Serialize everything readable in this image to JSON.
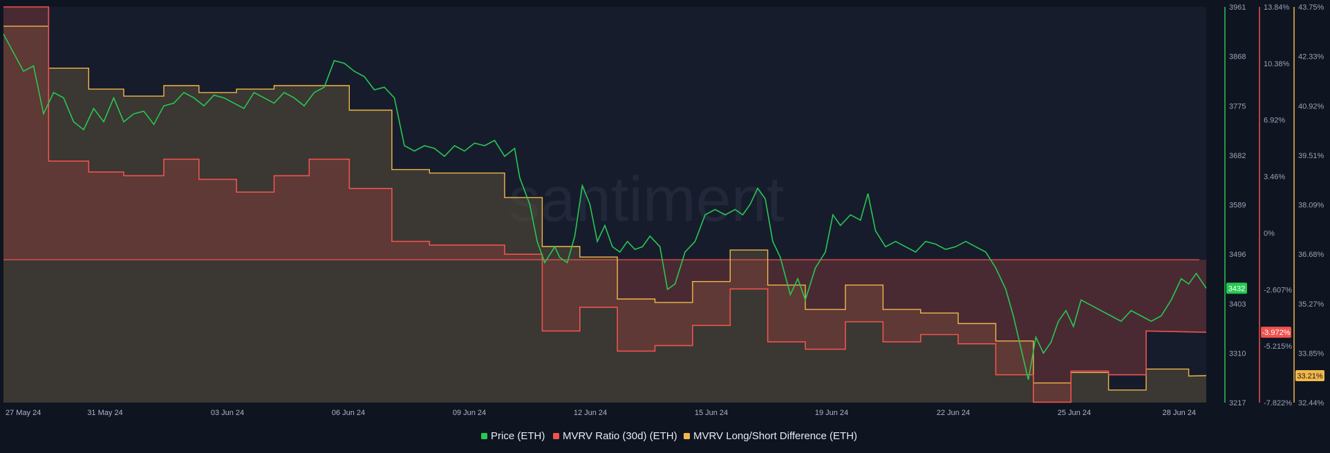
{
  "watermark": "santiment",
  "legend": [
    {
      "label": "Price (ETH)",
      "color": "#26c953"
    },
    {
      "label": "MVRV Ratio (30d) (ETH)",
      "color": "#ef5350"
    },
    {
      "label": "MVRV Long/Short Difference (ETH)",
      "color": "#f2b84b"
    }
  ],
  "colors": {
    "background": "#0f1421",
    "plot_background": "#171c2c",
    "price_line": "#26c953",
    "mvrv_line": "#ef5350",
    "ls_line": "#f2b84b"
  },
  "chart_data": {
    "type": "line",
    "x_range": [
      "2024-05-27",
      "2024-06-28"
    ],
    "x_ticks": [
      "27 May 24",
      "31 May 24",
      "03 Jun 24",
      "06 Jun 24",
      "09 Jun 24",
      "12 Jun 24",
      "15 Jun 24",
      "19 Jun 24",
      "22 Jun 24",
      "25 Jun 24",
      "28 Jun 24"
    ],
    "axes": {
      "price": {
        "range": [
          3217,
          3961
        ],
        "ticks": [
          "3961",
          "3868",
          "3775",
          "3682",
          "3589",
          "3496",
          "3403",
          "3310",
          "3217"
        ],
        "color": "#26c953"
      },
      "mvrv": {
        "range": [
          -7.822,
          13.84
        ],
        "ticks": [
          "13.84%",
          "10.38%",
          "6.92%",
          "3.46%",
          "0%",
          "-2.607%",
          "-5.215%",
          "-7.822%"
        ],
        "color": "#ef5350"
      },
      "ls": {
        "range": [
          32.44,
          43.75
        ],
        "ticks": [
          "43.75%",
          "42.33%",
          "40.92%",
          "39.51%",
          "38.09%",
          "36.68%",
          "35.27%",
          "33.85%",
          "32.44%"
        ],
        "color": "#f2b84b"
      }
    },
    "current_labels": {
      "price": "3432",
      "mvrv": "-3.972%",
      "ls": "33.21%"
    },
    "series": [
      {
        "name": "Price (ETH)",
        "axis": "price",
        "style": "line",
        "points": [
          [
            0.0,
            3910
          ],
          [
            0.4,
            3875
          ],
          [
            0.8,
            3840
          ],
          [
            1.2,
            3850
          ],
          [
            1.6,
            3760
          ],
          [
            2.0,
            3800
          ],
          [
            2.4,
            3790
          ],
          [
            2.8,
            3745
          ],
          [
            3.2,
            3730
          ],
          [
            3.6,
            3770
          ],
          [
            4.0,
            3745
          ],
          [
            4.4,
            3790
          ],
          [
            4.8,
            3745
          ],
          [
            5.2,
            3760
          ],
          [
            5.6,
            3765
          ],
          [
            6.0,
            3740
          ],
          [
            6.4,
            3775
          ],
          [
            6.8,
            3780
          ],
          [
            7.2,
            3800
          ],
          [
            7.6,
            3790
          ],
          [
            8.0,
            3775
          ],
          [
            8.4,
            3795
          ],
          [
            8.8,
            3790
          ],
          [
            9.2,
            3780
          ],
          [
            9.6,
            3770
          ],
          [
            10.0,
            3800
          ],
          [
            10.4,
            3790
          ],
          [
            10.8,
            3780
          ],
          [
            11.2,
            3800
          ],
          [
            11.6,
            3790
          ],
          [
            12.0,
            3775
          ],
          [
            12.4,
            3800
          ],
          [
            12.8,
            3810
          ],
          [
            13.2,
            3860
          ],
          [
            13.6,
            3855
          ],
          [
            14.0,
            3840
          ],
          [
            14.4,
            3830
          ],
          [
            14.8,
            3805
          ],
          [
            15.2,
            3810
          ],
          [
            15.6,
            3790
          ],
          [
            16.0,
            3700
          ],
          [
            16.4,
            3690
          ],
          [
            16.8,
            3700
          ],
          [
            17.2,
            3695
          ],
          [
            17.6,
            3680
          ],
          [
            18.0,
            3700
          ],
          [
            18.4,
            3690
          ],
          [
            18.8,
            3705
          ],
          [
            19.2,
            3700
          ],
          [
            19.6,
            3710
          ],
          [
            20.0,
            3680
          ],
          [
            20.4,
            3695
          ],
          [
            20.6,
            3640
          ],
          [
            21.0,
            3590
          ],
          [
            21.3,
            3520
          ],
          [
            21.6,
            3480
          ],
          [
            22.0,
            3510
          ],
          [
            22.2,
            3490
          ],
          [
            22.5,
            3480
          ],
          [
            22.8,
            3530
          ],
          [
            23.1,
            3625
          ],
          [
            23.4,
            3590
          ],
          [
            23.7,
            3520
          ],
          [
            24.0,
            3550
          ],
          [
            24.3,
            3510
          ],
          [
            24.6,
            3500
          ],
          [
            24.9,
            3520
          ],
          [
            25.2,
            3505
          ],
          [
            25.5,
            3510
          ],
          [
            25.8,
            3530
          ],
          [
            26.2,
            3510
          ],
          [
            26.5,
            3430
          ],
          [
            26.8,
            3440
          ],
          [
            27.2,
            3500
          ],
          [
            27.6,
            3520
          ],
          [
            28.0,
            3570
          ],
          [
            28.4,
            3580
          ],
          [
            28.8,
            3570
          ],
          [
            29.2,
            3580
          ],
          [
            29.5,
            3570
          ],
          [
            29.8,
            3590
          ],
          [
            30.1,
            3620
          ],
          [
            30.4,
            3600
          ],
          [
            30.7,
            3520
          ],
          [
            31.0,
            3490
          ],
          [
            31.4,
            3420
          ],
          [
            31.7,
            3450
          ],
          [
            32.0,
            3410
          ],
          [
            32.4,
            3470
          ],
          [
            32.8,
            3500
          ],
          [
            33.1,
            3570
          ],
          [
            33.4,
            3550
          ],
          [
            33.8,
            3570
          ],
          [
            34.2,
            3560
          ],
          [
            34.5,
            3610
          ],
          [
            34.8,
            3540
          ],
          [
            35.2,
            3510
          ],
          [
            35.6,
            3520
          ],
          [
            36.0,
            3510
          ],
          [
            36.4,
            3500
          ],
          [
            36.8,
            3520
          ],
          [
            37.2,
            3515
          ],
          [
            37.6,
            3505
          ],
          [
            38.0,
            3510
          ],
          [
            38.4,
            3520
          ],
          [
            38.8,
            3510
          ],
          [
            39.2,
            3500
          ],
          [
            39.6,
            3470
          ],
          [
            40.0,
            3430
          ],
          [
            40.3,
            3380
          ],
          [
            40.6,
            3320
          ],
          [
            40.9,
            3260
          ],
          [
            41.2,
            3340
          ],
          [
            41.5,
            3310
          ],
          [
            41.8,
            3330
          ],
          [
            42.1,
            3370
          ],
          [
            42.4,
            3390
          ],
          [
            42.7,
            3360
          ],
          [
            43.0,
            3410
          ],
          [
            43.4,
            3400
          ],
          [
            43.8,
            3390
          ],
          [
            44.2,
            3380
          ],
          [
            44.6,
            3370
          ],
          [
            45.0,
            3390
          ],
          [
            45.4,
            3380
          ],
          [
            45.8,
            3370
          ],
          [
            46.2,
            3380
          ],
          [
            46.6,
            3410
          ],
          [
            47.0,
            3450
          ],
          [
            47.3,
            3440
          ],
          [
            47.6,
            3460
          ],
          [
            48.0,
            3432
          ]
        ]
      },
      {
        "name": "MVRV Ratio (30d) (ETH)",
        "axis": "mvrv",
        "style": "step",
        "points": [
          [
            0.0,
            13.84
          ],
          [
            1.8,
            13.84
          ],
          [
            1.8,
            5.4
          ],
          [
            3.4,
            5.4
          ],
          [
            3.4,
            4.8
          ],
          [
            4.8,
            4.8
          ],
          [
            4.8,
            4.6
          ],
          [
            6.4,
            4.6
          ],
          [
            6.4,
            5.5
          ],
          [
            7.8,
            5.5
          ],
          [
            7.8,
            4.4
          ],
          [
            9.3,
            4.4
          ],
          [
            9.3,
            3.7
          ],
          [
            10.8,
            3.7
          ],
          [
            10.8,
            4.6
          ],
          [
            12.2,
            4.6
          ],
          [
            12.2,
            5.5
          ],
          [
            13.8,
            5.5
          ],
          [
            13.8,
            3.9
          ],
          [
            15.5,
            3.9
          ],
          [
            15.5,
            1.0
          ],
          [
            17.0,
            1.0
          ],
          [
            17.0,
            0.8
          ],
          [
            18.5,
            0.8
          ],
          [
            18.5,
            0.8
          ],
          [
            20.0,
            0.8
          ],
          [
            20.0,
            0.3
          ],
          [
            21.5,
            0.3
          ],
          [
            21.5,
            -3.9
          ],
          [
            23.0,
            -3.9
          ],
          [
            23.0,
            -2.6
          ],
          [
            24.5,
            -2.6
          ],
          [
            24.5,
            -5.0
          ],
          [
            26.0,
            -5.0
          ],
          [
            26.0,
            -4.7
          ],
          [
            27.5,
            -4.7
          ],
          [
            27.5,
            -3.6
          ],
          [
            29.0,
            -3.6
          ],
          [
            29.0,
            -1.6
          ],
          [
            30.5,
            -1.6
          ],
          [
            30.5,
            -4.5
          ],
          [
            32.0,
            -4.5
          ],
          [
            32.0,
            -4.9
          ],
          [
            33.6,
            -4.9
          ],
          [
            33.6,
            -3.4
          ],
          [
            35.1,
            -3.4
          ],
          [
            35.1,
            -4.5
          ],
          [
            36.6,
            -4.5
          ],
          [
            36.6,
            -4.1
          ],
          [
            38.1,
            -4.1
          ],
          [
            38.1,
            -4.6
          ],
          [
            39.6,
            -4.6
          ],
          [
            39.6,
            -6.3
          ],
          [
            41.1,
            -6.3
          ],
          [
            41.1,
            -7.8
          ],
          [
            42.6,
            -7.8
          ],
          [
            42.6,
            -6.1
          ],
          [
            44.1,
            -6.1
          ],
          [
            44.1,
            -6.3
          ],
          [
            45.6,
            -6.3
          ],
          [
            45.6,
            -3.9
          ],
          [
            48.0,
            -3.972
          ]
        ]
      },
      {
        "name": "MVRV Long/Short Difference (ETH)",
        "axis": "ls",
        "style": "step",
        "points": [
          [
            0.0,
            43.2
          ],
          [
            1.8,
            43.2
          ],
          [
            1.8,
            42.0
          ],
          [
            3.4,
            42.0
          ],
          [
            3.4,
            41.4
          ],
          [
            4.8,
            41.4
          ],
          [
            4.8,
            41.2
          ],
          [
            6.4,
            41.2
          ],
          [
            6.4,
            41.5
          ],
          [
            7.8,
            41.5
          ],
          [
            7.8,
            41.3
          ],
          [
            9.3,
            41.3
          ],
          [
            9.3,
            41.4
          ],
          [
            10.8,
            41.4
          ],
          [
            10.8,
            41.5
          ],
          [
            12.2,
            41.5
          ],
          [
            12.2,
            41.5
          ],
          [
            13.8,
            41.5
          ],
          [
            13.8,
            40.8
          ],
          [
            15.5,
            40.8
          ],
          [
            15.5,
            39.1
          ],
          [
            17.0,
            39.1
          ],
          [
            17.0,
            39.0
          ],
          [
            18.5,
            39.0
          ],
          [
            18.5,
            39.0
          ],
          [
            20.0,
            39.0
          ],
          [
            20.0,
            38.3
          ],
          [
            21.5,
            38.3
          ],
          [
            21.5,
            36.9
          ],
          [
            23.0,
            36.9
          ],
          [
            23.0,
            36.6
          ],
          [
            24.5,
            36.6
          ],
          [
            24.5,
            35.4
          ],
          [
            26.0,
            35.4
          ],
          [
            26.0,
            35.3
          ],
          [
            27.5,
            35.3
          ],
          [
            27.5,
            35.9
          ],
          [
            29.0,
            35.9
          ],
          [
            29.0,
            36.8
          ],
          [
            30.5,
            36.8
          ],
          [
            30.5,
            35.8
          ],
          [
            32.0,
            35.8
          ],
          [
            32.0,
            35.1
          ],
          [
            33.6,
            35.1
          ],
          [
            33.6,
            35.8
          ],
          [
            35.1,
            35.8
          ],
          [
            35.1,
            35.1
          ],
          [
            36.6,
            35.1
          ],
          [
            36.6,
            35.0
          ],
          [
            38.1,
            35.0
          ],
          [
            38.1,
            34.7
          ],
          [
            39.6,
            34.7
          ],
          [
            39.6,
            34.2
          ],
          [
            41.1,
            34.2
          ],
          [
            41.1,
            33.0
          ],
          [
            42.6,
            33.0
          ],
          [
            42.6,
            33.3
          ],
          [
            44.1,
            33.3
          ],
          [
            44.1,
            32.8
          ],
          [
            45.6,
            32.8
          ],
          [
            45.6,
            33.4
          ],
          [
            47.3,
            33.4
          ],
          [
            47.3,
            33.2
          ],
          [
            48.0,
            33.21
          ]
        ]
      }
    ]
  }
}
